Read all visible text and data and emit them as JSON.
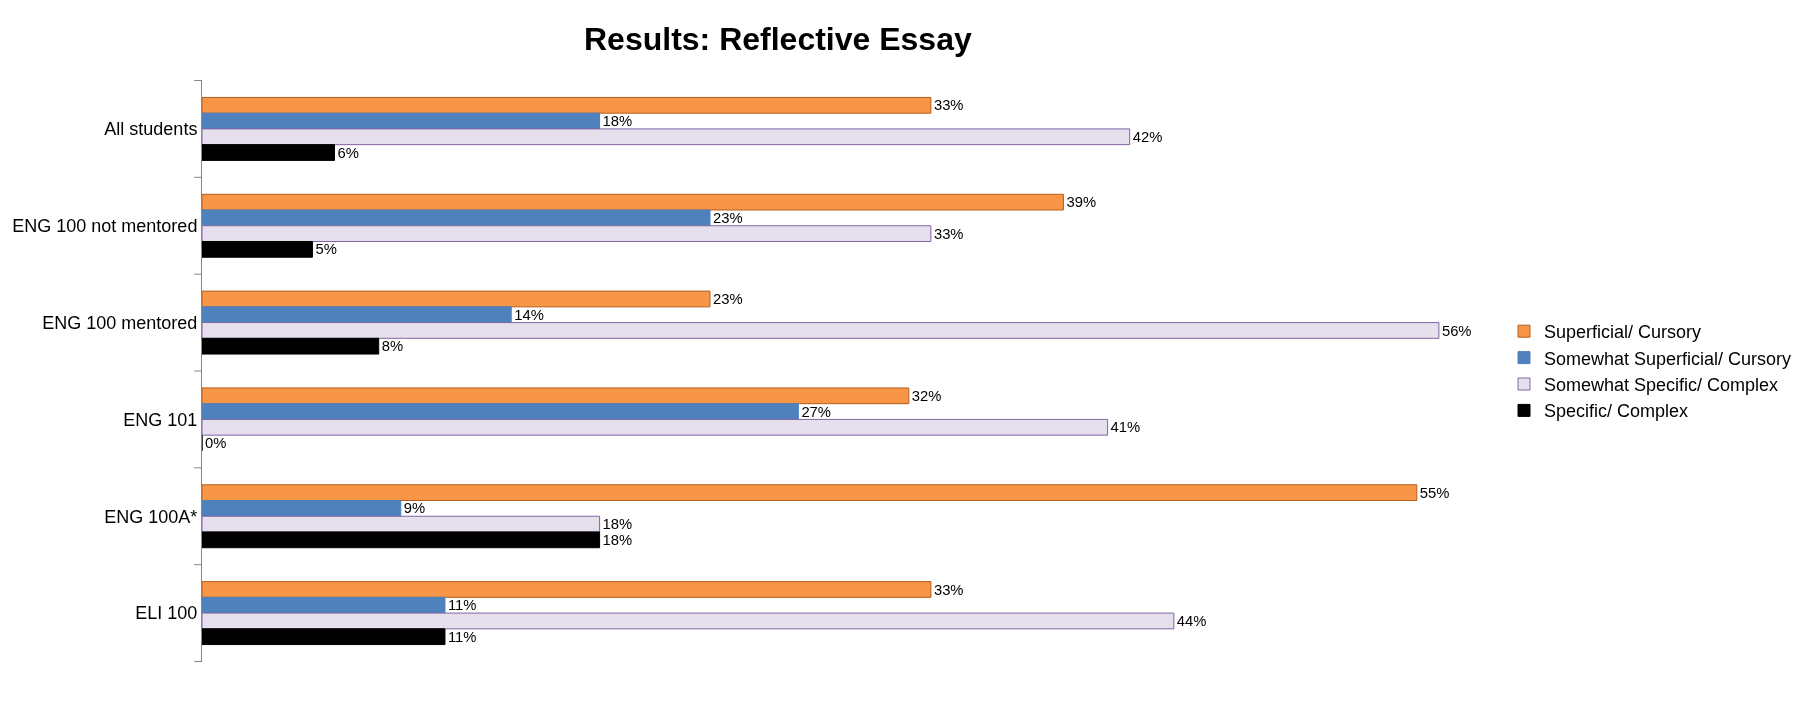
{
  "chart_data": {
    "type": "bar",
    "orientation": "horizontal",
    "title": "Results: Reflective Essay",
    "categories": [
      "All students",
      "ENG 100 not mentored",
      "ENG 100 mentored",
      "ENG 101",
      "ENG 100A*",
      "ELI 100"
    ],
    "series": [
      {
        "name": "Superficial/ Cursory",
        "color": "#f79646",
        "values": [
          33,
          39,
          23,
          32,
          55,
          33
        ],
        "value_labels": [
          "33%",
          "39%",
          "23%",
          "32%",
          "55%",
          "33%"
        ]
      },
      {
        "name": "Somewhat Superficial/ Cursory",
        "color": "#4f81bd",
        "values": [
          18,
          23,
          14,
          27,
          9,
          11
        ],
        "value_labels": [
          "18%",
          "23%",
          "14%",
          "27%",
          "9%",
          "11%"
        ]
      },
      {
        "name": "Somewhat Specific/ Complex",
        "color": "#e6e0ec",
        "values": [
          42,
          33,
          56,
          41,
          18,
          44
        ],
        "value_labels": [
          "42%",
          "33%",
          "56%",
          "41%",
          "18%",
          "44%"
        ]
      },
      {
        "name": "Specific/ Complex",
        "color": "#000000",
        "values": [
          6,
          5,
          8,
          0,
          18,
          11
        ],
        "value_labels": [
          "6%",
          "5%",
          "8%",
          "0%",
          "18%",
          "11%"
        ]
      }
    ],
    "legend": "right",
    "tick_labels": "y"
  }
}
